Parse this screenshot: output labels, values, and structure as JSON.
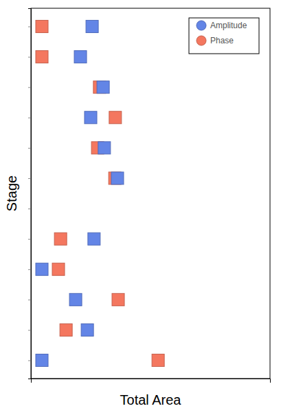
{
  "chart_data": {
    "type": "scatter",
    "x_label": "Total Area",
    "y_label": "Stage",
    "categories": [
      null,
      null,
      null,
      null,
      null,
      null,
      null,
      null,
      null,
      null,
      null,
      null
    ],
    "xlim": [
      0,
      100
    ],
    "series": [
      {
        "name": "Amplitude",
        "color": "#6385e6",
        "marker": "square",
        "values": [
          25.6,
          20.7,
          30.2,
          25.0,
          30.7,
          36.2,
          null,
          26.4,
          4.6,
          18.7,
          23.6,
          4.6
        ]
      },
      {
        "name": "Phase",
        "color": "#f4775f",
        "marker": "square",
        "values": [
          4.6,
          4.6,
          28.7,
          35.3,
          27.9,
          35.1,
          null,
          12.4,
          11.5,
          36.5,
          14.7,
          53.2
        ]
      }
    ],
    "legend": "top-right",
    "grid": false,
    "tick_labels": false
  }
}
